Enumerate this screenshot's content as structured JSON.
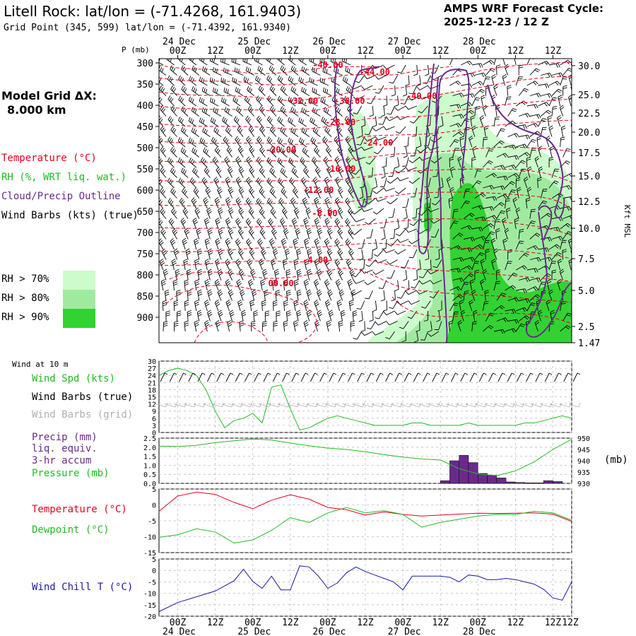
{
  "header": {
    "title": "Litell Rock:  lat/lon = (-71.4268, 161.9403)",
    "subtitle": "Grid Point (345, 599) lat/lon = (-71.4392, 161.9340)",
    "cycle_line1": "AMPS WRF Forecast Cycle:",
    "cycle_line2": "2025-12-23 / 12  Z"
  },
  "side": {
    "grid_line1": "Model Grid ΔX:",
    "grid_line2": "8.000 km",
    "legend_temperature": "Temperature (°C)",
    "legend_rh": "RH (%, WRT liq. wat.)",
    "legend_cloud": "Cloud/Precip Outline",
    "legend_wind": "Wind Barbs (kts) (true)",
    "rh70": "RH > 70%",
    "rh80": "RH > 80%",
    "rh90": "RH > 90%",
    "pressure_unit": "P (mb)",
    "height_unit": "Kft MSL",
    "wind10_title": "Wind at 10 m",
    "wind_spd": "Wind Spd (kts)",
    "wind_barbs_true": "Wind Barbs (true)",
    "wind_barbs_grid": "Wind Barbs (grid)",
    "precip1": "Precip (mm)",
    "precip2": "liq. equiv.",
    "precip3": "3-hr accum",
    "pressure_lbl": "Pressure (mb)",
    "mb_unit": "(mb)",
    "temperature_lbl": "Temperature (°C)",
    "dewpoint_lbl": "Dewpoint (°C)",
    "windchill_lbl": "Wind Chill T (°C)"
  },
  "colors": {
    "temperature": "#e8001c",
    "rh70": "#ccfccc",
    "rh80": "#a0eaa0",
    "rh90": "#32d232",
    "cloud": "#6a2a8c",
    "wind_speed": "#22bb22",
    "pressure": "#22bb22",
    "precip": "#6a2a8c",
    "dewpoint": "#22bb22",
    "windchill": "#1a1aa8",
    "grid_barbs": "#b0b0b0"
  },
  "chart_data": [
    {
      "type": "heatmap",
      "name": "time-height cross section",
      "x_ticks": [
        "00Z",
        "12Z",
        "00Z",
        "12Z",
        "00Z",
        "12Z",
        "00Z",
        "12Z",
        "00Z",
        "12Z"
      ],
      "x_dates": [
        "24 Dec",
        "25 Dec",
        "26 Dec",
        "27 Dec",
        "28 Dec"
      ],
      "forecast_hours": [
        0,
        132
      ],
      "pressure_ticks": [
        300,
        350,
        400,
        450,
        500,
        550,
        600,
        650,
        700,
        750,
        800,
        850,
        900
      ],
      "height_ticks": [
        "30.0",
        "25.0",
        "22.5",
        "20.0",
        "17.5",
        "15.0",
        "12.5",
        "10.0",
        "7.5",
        "5.0",
        "2.5",
        "1.47"
      ],
      "temperature_contours": [
        {
          "label": "-40.00",
          "hour": 54,
          "p": 305
        },
        {
          "label": "-44.00",
          "hour": 69,
          "p": 322
        },
        {
          "label": "-40.00",
          "hour": 84,
          "p": 378
        },
        {
          "label": "-32.00",
          "hour": 46,
          "p": 390
        },
        {
          "label": "-36.00",
          "hour": 61,
          "p": 390
        },
        {
          "label": "-28.00",
          "hour": 58,
          "p": 440
        },
        {
          "label": "-24.00",
          "hour": 70,
          "p": 488
        },
        {
          "label": "-20.00",
          "hour": 39,
          "p": 505
        },
        {
          "label": "-16.00",
          "hour": 58,
          "p": 550
        },
        {
          "label": "-12.00",
          "hour": 51,
          "p": 600
        },
        {
          "label": "-8.00",
          "hour": 53,
          "p": 655
        },
        {
          "label": "-4.00",
          "hour": 50,
          "p": 765
        },
        {
          "label": "00.00",
          "hour": 39,
          "p": 820
        }
      ]
    },
    {
      "type": "line",
      "name": "wind speed at 10 m",
      "y_ticks": [
        0,
        3,
        6,
        9,
        12,
        15,
        18,
        21,
        24,
        27,
        30
      ],
      "ylim": [
        0,
        30
      ],
      "x": [
        0,
        3,
        6,
        9,
        12,
        15,
        18,
        21,
        24,
        27,
        30,
        33,
        36,
        39,
        42,
        45,
        48,
        51,
        54,
        57,
        60,
        63,
        66,
        69,
        72,
        75,
        78,
        81,
        84,
        87,
        90,
        93,
        96,
        99,
        102,
        105,
        108,
        111,
        114,
        117,
        120,
        123,
        126,
        129,
        132
      ],
      "values": [
        24,
        26,
        27,
        26,
        24,
        18,
        9,
        2,
        5,
        6,
        8,
        4,
        19,
        20,
        10,
        1,
        2,
        4,
        6,
        7,
        6,
        5,
        4,
        3,
        3,
        3,
        3,
        4,
        4,
        3,
        3,
        3,
        3,
        4,
        3,
        3,
        3,
        3,
        3,
        4,
        4,
        5,
        6,
        7,
        6
      ]
    },
    {
      "type": "bar",
      "name": "3-hr precipitation",
      "ylim": [
        0,
        2.5
      ],
      "y_ticks": [
        0,
        0.5,
        1.0,
        1.5,
        2.0,
        2.5
      ],
      "x": [
        93,
        96,
        99,
        102,
        105,
        108,
        111,
        114,
        117,
        120,
        123,
        126,
        129
      ],
      "values": [
        0.15,
        1.25,
        1.55,
        1.15,
        0.55,
        0.45,
        0.3,
        0.08,
        0.05,
        0.03,
        0.03,
        0.15,
        0.1
      ]
    },
    {
      "type": "line",
      "name": "surface pressure",
      "ylim": [
        930,
        950
      ],
      "y_ticks": [
        930,
        935,
        940,
        945,
        950
      ],
      "x": [
        0,
        6,
        12,
        18,
        24,
        30,
        36,
        42,
        48,
        54,
        60,
        66,
        72,
        78,
        84,
        90,
        96,
        102,
        108,
        114,
        120,
        126,
        132
      ],
      "values": [
        946.5,
        946.3,
        946.8,
        948,
        948.8,
        949.6,
        949.2,
        947.8,
        946.6,
        945.6,
        945,
        944,
        942.7,
        941.6,
        940.8,
        940.3,
        936.5,
        934.2,
        933.4,
        935.5,
        939.5,
        945,
        949.5
      ]
    },
    {
      "type": "line",
      "name": "temperature and dewpoint",
      "ylim": [
        -15,
        5
      ],
      "y_ticks": [
        -15,
        -10,
        -5,
        0,
        5
      ],
      "x": [
        0,
        6,
        12,
        18,
        24,
        30,
        36,
        42,
        48,
        54,
        60,
        66,
        72,
        78,
        84,
        90,
        96,
        102,
        108,
        114,
        120,
        126,
        132
      ],
      "series": [
        {
          "values": [
            -2,
            2.8,
            4,
            3.3,
            0.8,
            -1.2,
            1.5,
            3.2,
            1.8,
            -0.8,
            -1.5,
            -3.2,
            -2.2,
            -3,
            -3.5,
            -3.2,
            -2.9,
            -2.6,
            -2.7,
            -2.6,
            -2.5,
            -2.9,
            -5.2
          ]
        },
        {
          "values": [
            -10.2,
            -9.4,
            -7.5,
            -8.5,
            -12,
            -11,
            -8,
            -4,
            -5.5,
            -2.5,
            -0.8,
            -2.5,
            -1.8,
            -3,
            -7,
            -5.5,
            -4.5,
            -3.5,
            -3,
            -3,
            -2,
            -2.5,
            -4.8
          ]
        }
      ]
    },
    {
      "type": "line",
      "name": "wind chill",
      "ylim": [
        -20,
        5
      ],
      "y_ticks": [
        -20,
        -15,
        -10,
        -5,
        0,
        5
      ],
      "x": [
        0,
        6,
        12,
        18,
        24,
        27,
        30,
        33,
        36,
        39,
        42,
        45,
        48,
        51,
        54,
        57,
        60,
        63,
        66,
        69,
        72,
        75,
        78,
        81,
        84,
        87,
        90,
        93,
        96,
        99,
        102,
        105,
        108,
        111,
        114,
        117,
        120,
        123,
        126,
        129,
        132
      ],
      "values": [
        -18,
        -14,
        -11.5,
        -9,
        -4.5,
        0.5,
        -4.8,
        -7.8,
        -2.5,
        -8.5,
        -8.5,
        2,
        1.5,
        -2.5,
        -7.8,
        -5.5,
        -1,
        1.5,
        -0.5,
        -2,
        -3.5,
        -5,
        -8.5,
        -2.5,
        -2.5,
        -2.5,
        -2.5,
        -3,
        -5,
        -2,
        -2.5,
        -4,
        -4,
        -3.5,
        -4,
        -5,
        -6,
        -8.2,
        -12,
        -13,
        -5
      ]
    }
  ]
}
